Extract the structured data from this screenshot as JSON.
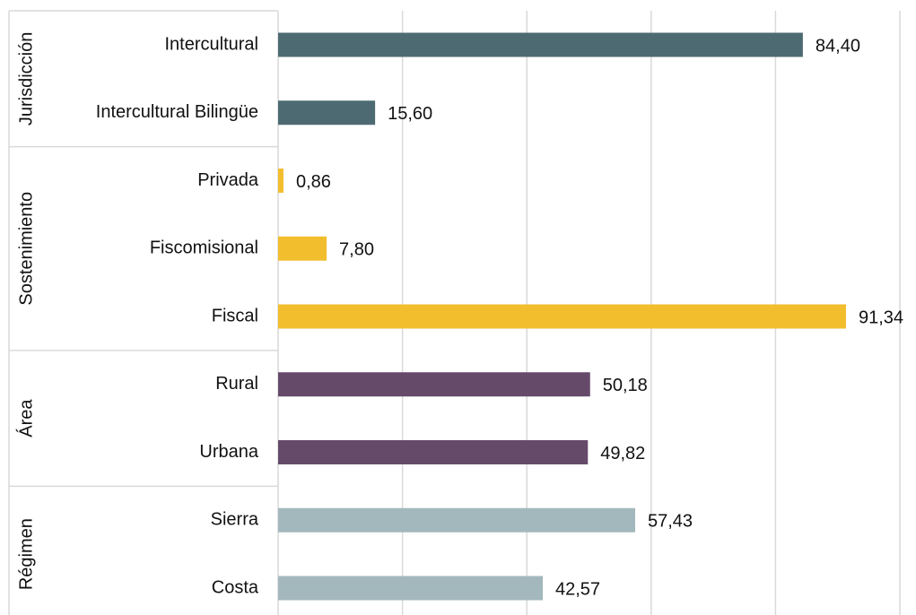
{
  "chart_data": {
    "type": "bar",
    "xlim": [
      0,
      100
    ],
    "xticks": [
      0,
      20,
      40,
      60,
      80,
      100
    ],
    "grid": true,
    "groups": [
      {
        "name": "Jurisdicción",
        "color": "#4d6a72",
        "categories": [
          "Intercultural",
          "Intercultural Bilingüe"
        ],
        "values": [
          84.4,
          15.6
        ],
        "value_labels": [
          "84,40",
          "15,60"
        ]
      },
      {
        "name": "Sostenimiento",
        "color": "#f2be2e",
        "categories": [
          "Privada",
          "Fiscomisional",
          "Fiscal"
        ],
        "values": [
          0.86,
          7.8,
          91.34
        ],
        "value_labels": [
          "0,86",
          "7,80",
          "91,34"
        ]
      },
      {
        "name": "Área",
        "color": "#654a6a",
        "categories": [
          "Rural",
          "Urbana"
        ],
        "values": [
          50.18,
          49.82
        ],
        "value_labels": [
          "50,18",
          "49,82"
        ]
      },
      {
        "name": "Régimen",
        "color": "#a3b8bc",
        "categories": [
          "Sierra",
          "Costa"
        ],
        "values": [
          57.43,
          42.57
        ],
        "value_labels": [
          "57,43",
          "42,57"
        ]
      }
    ]
  }
}
